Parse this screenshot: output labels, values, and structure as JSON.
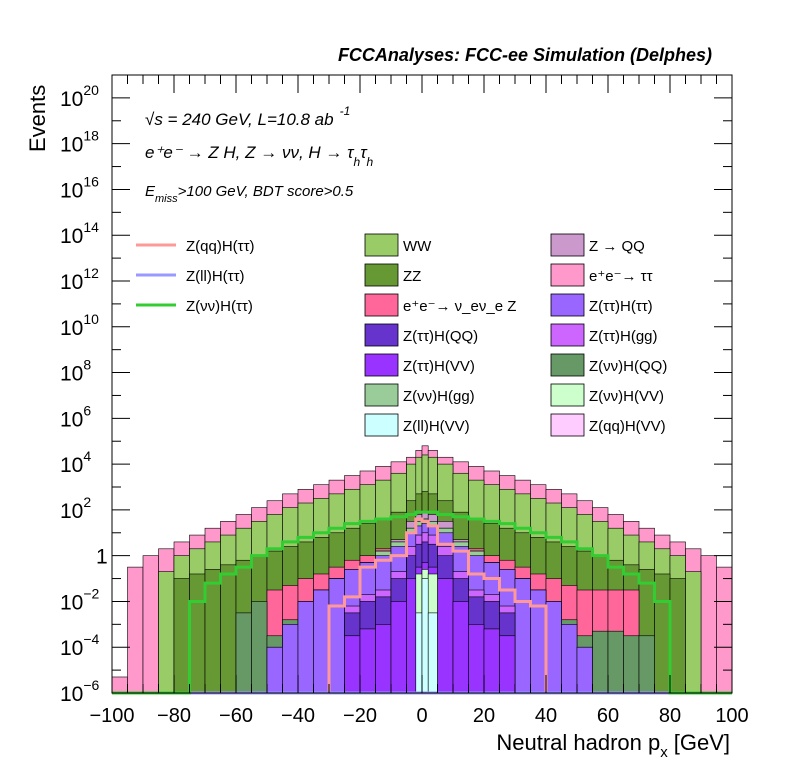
{
  "chart_data": {
    "type": "histogram-stacked",
    "title": "FCCAnalyses: FCC-ee Simulation (Delphes)",
    "xlabel": "Neutral hadron p",
    "xlabel_sub": "x",
    "xlabel_unit": "[GeV]",
    "ylabel": "Events",
    "xlim": [
      -100,
      100
    ],
    "ylim_log10": [
      -6,
      21
    ],
    "yscale": "log",
    "x_ticks": [
      -100,
      -80,
      -60,
      -40,
      -20,
      0,
      20,
      40,
      60,
      80,
      100
    ],
    "x_tick_labels": [
      "−100",
      "−80",
      "−60",
      "−40",
      "−20",
      "0",
      "20",
      "40",
      "60",
      "80",
      "100"
    ],
    "y_ticks": [
      {
        "exp": 20,
        "base": "10",
        "sup": "20"
      },
      {
        "exp": 18,
        "base": "10",
        "sup": "18"
      },
      {
        "exp": 16,
        "base": "10",
        "sup": "16"
      },
      {
        "exp": 14,
        "base": "10",
        "sup": "14"
      },
      {
        "exp": 12,
        "base": "10",
        "sup": "12"
      },
      {
        "exp": 10,
        "base": "10",
        "sup": "10"
      },
      {
        "exp": 8,
        "base": "10",
        "sup": "8"
      },
      {
        "exp": 6,
        "base": "10",
        "sup": "6"
      },
      {
        "exp": 4,
        "base": "10",
        "sup": "4"
      },
      {
        "exp": 2,
        "base": "10",
        "sup": "2"
      },
      {
        "exp": 0,
        "base": "1",
        "sup": ""
      },
      {
        "exp": -2,
        "base": "10",
        "sup": "−2"
      },
      {
        "exp": -4,
        "base": "10",
        "sup": "−4"
      },
      {
        "exp": -6,
        "base": "10",
        "sup": "−6"
      }
    ],
    "annotations": {
      "energy": "√s = 240 GeV, L=10.8 ab",
      "energy_sup": "-1",
      "process": "e⁺e⁻ → Z H, Z → νν, H → τ",
      "process_sub": "h",
      "cuts": "E",
      "cuts_sub": "miss",
      "cuts_rest": ">100 GeV, BDT score>0.5"
    },
    "bin_edges": [
      -100,
      -95,
      -90,
      -85,
      -80,
      -75,
      -70,
      -65,
      -60,
      -55,
      -50,
      -45,
      -40,
      -35,
      -30,
      -25,
      -20,
      -15,
      -10,
      -5,
      -2,
      0,
      2,
      5,
      10,
      15,
      20,
      25,
      30,
      35,
      40,
      45,
      50,
      55,
      60,
      65,
      70,
      75,
      80,
      85,
      90,
      95,
      100
    ],
    "stacked_series": [
      {
        "name": "Z(qq)H(VV)",
        "color": "#ffccff",
        "values_log10": [
          -6,
          -6,
          -6,
          -6,
          -6,
          -6,
          -6,
          -6,
          -6,
          -6,
          -6,
          -6,
          -6,
          -6,
          -6,
          -6,
          -6,
          -6,
          -6,
          -6,
          -6,
          -6,
          -6,
          -6,
          -6,
          -6,
          -6,
          -6,
          -6,
          -6,
          -6,
          -6,
          -6,
          -6,
          -6,
          -6,
          -6,
          -6,
          -6,
          -6,
          -6,
          -6
        ]
      },
      {
        "name": "Z(ll)H(VV)",
        "color": "#ccffff",
        "values_log10": [
          -6,
          -6,
          -6,
          -6,
          -6,
          -6,
          -6,
          -6,
          -6,
          -6,
          -6,
          -6,
          -6,
          -6,
          -6,
          -6,
          -6,
          -6,
          -6,
          -6,
          -2.5,
          -1.0,
          -2.5,
          -6,
          -6,
          -6,
          -6,
          -6,
          -6,
          -6,
          -6,
          -6,
          -6,
          -6,
          -6,
          -6,
          -6,
          -6,
          -6,
          -6,
          -6,
          -6
        ]
      },
      {
        "name": "Z(νν)H(VV)",
        "color": "#ccffcc",
        "values_log10": [
          -6,
          -6,
          -6,
          -6,
          -6,
          -6,
          -6,
          -6,
          -6,
          -6,
          -6,
          -6,
          -6,
          -6,
          -6,
          -6,
          -6,
          -6,
          -6,
          -6,
          -0.8,
          -0.6,
          -0.8,
          -6,
          -6,
          -6,
          -6,
          -6,
          -6,
          -6,
          -6,
          -6,
          -6,
          -6,
          -6,
          -6,
          -6,
          -6,
          -6,
          -6,
          -6,
          -6
        ]
      },
      {
        "name": "Z(ττ)H(VV)",
        "color": "#9933ff",
        "values_log10": [
          -6,
          -6,
          -6,
          -6,
          -6,
          -6,
          -6,
          -6,
          -6,
          -6,
          -6,
          -6,
          -6,
          -6,
          -6,
          -3.5,
          -3.2,
          -3.0,
          -2.0,
          -1.0,
          -0.5,
          -0.3,
          -0.5,
          -1.0,
          -2.0,
          -3.0,
          -3.2,
          -3.5,
          -6,
          -6,
          -6,
          -6,
          -6,
          -6,
          -6,
          -6,
          -6,
          -6,
          -6,
          -6,
          -6,
          -6
        ]
      },
      {
        "name": "Z(ττ)H(QQ)",
        "color": "#6633cc",
        "values_log10": [
          -6,
          -6,
          -6,
          -6,
          -6,
          -6,
          -6,
          -6,
          -6,
          -6,
          -6,
          -6,
          -6,
          -6,
          -6,
          -2.5,
          -2.0,
          -1.8,
          -1.0,
          0.0,
          0.5,
          0.6,
          0.5,
          0.0,
          -1.0,
          -1.8,
          -2.0,
          -2.5,
          -6,
          -6,
          -6,
          -6,
          -6,
          -6,
          -6,
          -6,
          -6,
          -6,
          -6,
          -6,
          -6,
          -6
        ]
      },
      {
        "name": "Z(ττ)H(gg)",
        "color": "#cc66ff",
        "values_log10": [
          -6,
          -6,
          -6,
          -6,
          -6,
          -6,
          -6,
          -6,
          -6,
          -6,
          -6,
          -6,
          -6,
          -6,
          -6,
          -2.2,
          -1.7,
          -1.5,
          -0.7,
          0.4,
          0.9,
          1.0,
          0.9,
          0.4,
          -0.7,
          -1.5,
          -1.7,
          -2.2,
          -6,
          -6,
          -6,
          -6,
          -6,
          -6,
          -6,
          -6,
          -6,
          -6,
          -6,
          -6,
          -6,
          -6
        ]
      },
      {
        "name": "Z(ττ)H(ττ)",
        "color": "#9966ff",
        "values_log10": [
          -6,
          -6,
          -6,
          -6,
          -6,
          -6,
          -6,
          -6,
          -6,
          -6,
          -4.0,
          -3.0,
          -2.0,
          -1.5,
          -1.0,
          -0.6,
          -0.3,
          0.0,
          0.4,
          1.0,
          1.3,
          1.4,
          1.3,
          1.0,
          0.4,
          0.0,
          -0.3,
          -0.6,
          -1.0,
          -1.5,
          -2.0,
          -3.0,
          -4.0,
          -6,
          -6,
          -6,
          -6,
          -6,
          -6,
          -6,
          -6,
          -6
        ]
      },
      {
        "name": "Z(νν)H(gg)",
        "color": "#99cc99",
        "values_log10": [
          -6,
          -6,
          -6,
          -6,
          -6,
          -6,
          -6,
          -6,
          -6,
          -6,
          -4.0,
          -3.0,
          -2.0,
          -1.5,
          -1.0,
          -0.6,
          -0.3,
          0.2,
          0.6,
          1.2,
          1.5,
          1.6,
          1.5,
          1.2,
          0.6,
          0.2,
          -0.3,
          -0.6,
          -1.0,
          -1.5,
          -2.0,
          -3.0,
          -4.0,
          -6,
          -6,
          -6,
          -6,
          -6,
          -6,
          -6,
          -6,
          -6
        ]
      },
      {
        "name": "Z(νν)H(QQ)",
        "color": "#669966",
        "values_log10": [
          -6,
          -6,
          -6,
          -6,
          -6,
          -6,
          -6,
          -6,
          -2.5,
          -2.0,
          -3.5,
          -2.8,
          -2.0,
          -1.5,
          -1.0,
          -0.6,
          -0.3,
          0.2,
          0.6,
          1.2,
          1.5,
          1.6,
          1.5,
          1.2,
          0.6,
          0.2,
          -0.3,
          -0.6,
          -1.0,
          -1.5,
          -2.0,
          -2.8,
          -3.5,
          -3.3,
          -3.3,
          -3.5,
          -3.5,
          -6,
          -6,
          -6,
          -6,
          -6
        ]
      },
      {
        "name": "Z → QQ",
        "color": "#cc99cc",
        "values_log10": [
          -6,
          -6,
          -6,
          -6,
          -6,
          -6,
          -6,
          -6,
          -6,
          -6,
          -4.0,
          -3.0,
          -2.0,
          -1.5,
          -1.0,
          -0.6,
          -0.3,
          0.2,
          0.7,
          1.5,
          1.8,
          1.9,
          1.8,
          1.5,
          0.7,
          0.2,
          -0.3,
          -0.6,
          -1.0,
          -1.5,
          -2.0,
          -3.0,
          -4.0,
          -6,
          -6,
          -6,
          -6,
          -6,
          -6,
          -6,
          -6,
          -6
        ]
      },
      {
        "name": "e⁺e⁻→ ν_eν_e Z",
        "color": "#ff6699",
        "values_log10": [
          -6,
          -6,
          -6,
          -6,
          -6,
          -6,
          -6,
          -6,
          -6,
          -6,
          -1.5,
          -1.3,
          -1.0,
          -0.8,
          -0.5,
          -0.2,
          0.0,
          0.3,
          0.6,
          1.2,
          1.6,
          1.8,
          1.6,
          1.2,
          0.6,
          0.3,
          0.0,
          -0.2,
          -0.5,
          -0.8,
          -1.0,
          -1.3,
          -1.5,
          -1.5,
          -1.5,
          -1.5,
          -6,
          -6,
          -6,
          -6,
          -6,
          -6
        ]
      },
      {
        "name": "ZZ",
        "color": "#669933",
        "values_log10": [
          -6,
          -6,
          -6,
          -6,
          -1.0,
          -0.8,
          -0.6,
          -0.4,
          -0.2,
          0.0,
          0.2,
          0.4,
          0.6,
          0.8,
          1.0,
          1.2,
          1.4,
          1.6,
          1.9,
          2.4,
          2.7,
          2.8,
          2.7,
          2.4,
          1.9,
          1.6,
          1.4,
          1.2,
          1.0,
          0.8,
          0.6,
          0.4,
          0.2,
          0.0,
          -0.2,
          -0.4,
          -0.6,
          -0.8,
          -1.0,
          -6,
          -6,
          -6
        ]
      },
      {
        "name": "WW",
        "color": "#99cc66",
        "values_log10": [
          -6,
          -6,
          -6,
          -0.7,
          0.0,
          0.3,
          0.6,
          0.9,
          1.2,
          1.5,
          1.8,
          2.1,
          2.3,
          2.5,
          2.7,
          2.9,
          3.1,
          3.3,
          3.6,
          4.0,
          4.3,
          4.4,
          4.3,
          4.0,
          3.6,
          3.3,
          3.1,
          2.9,
          2.7,
          2.5,
          2.3,
          2.1,
          1.8,
          1.5,
          1.2,
          0.9,
          0.6,
          0.3,
          0.0,
          -0.7,
          -6,
          -6
        ]
      },
      {
        "name": "e⁺e⁻→ ττ",
        "color": "#ff99cc",
        "values_log10": [
          -5.3,
          -0.5,
          0.0,
          0.3,
          0.6,
          0.9,
          1.2,
          1.5,
          1.8,
          2.1,
          2.4,
          2.7,
          2.9,
          3.1,
          3.3,
          3.5,
          3.7,
          3.9,
          4.1,
          4.3,
          4.6,
          4.8,
          4.6,
          4.3,
          4.1,
          3.9,
          3.7,
          3.5,
          3.3,
          3.1,
          2.9,
          2.7,
          2.4,
          2.1,
          1.8,
          1.5,
          1.2,
          0.9,
          0.6,
          0.3,
          0.0,
          -0.5
        ]
      }
    ],
    "line_series": [
      {
        "name": "Z(qq)H(ττ)",
        "color": "#ff9999",
        "values_log10": [
          -6,
          -6,
          -6,
          -6,
          -6,
          -6,
          -6,
          -6,
          -6,
          -6,
          -6,
          -6,
          -6,
          -6,
          -2.2,
          -1.8,
          -0.5,
          -0.2,
          0.0,
          1.0,
          1.6,
          1.5,
          1.3,
          0.5,
          0.2,
          -0.8,
          -1.0,
          -1.5,
          -2.0,
          -2.2,
          -6,
          -6,
          -6,
          -6,
          -6,
          -6,
          -6,
          -6,
          -6,
          -6,
          -6,
          -6
        ]
      },
      {
        "name": "Z(ll)H(ττ)",
        "color": "#9999ff",
        "values_log10": [
          -6,
          -6,
          -6,
          -6,
          -6,
          -6,
          -6,
          -6,
          -6,
          -6,
          -6,
          -6,
          -6,
          -6,
          -6,
          -6,
          -6,
          -6,
          -6,
          -6,
          -6,
          -6,
          -6,
          -6,
          -6,
          -6,
          -6,
          -6,
          -6,
          -6,
          -6,
          -6,
          -6,
          -6,
          -6,
          -6,
          -6,
          -6,
          -6,
          -6,
          -6,
          -6
        ]
      },
      {
        "name": "Z(νν)H(ττ)",
        "color": "#33cc33",
        "values_log10": [
          -6,
          -6,
          -6,
          -6,
          -6,
          -2.0,
          -1.2,
          -0.8,
          -0.5,
          0.0,
          0.3,
          0.6,
          0.8,
          1.0,
          1.2,
          1.4,
          1.5,
          1.6,
          1.7,
          1.8,
          1.9,
          1.9,
          1.9,
          1.8,
          1.7,
          1.6,
          1.5,
          1.4,
          1.2,
          1.0,
          0.8,
          0.6,
          0.3,
          0.0,
          -0.5,
          -0.8,
          -1.2,
          -2.0,
          -6,
          -6,
          -6,
          -6
        ]
      }
    ],
    "legend": {
      "placement": "top",
      "columns": [
        [
          {
            "type": "line",
            "name": "Z(qq)H(ττ)",
            "color": "#ff9999"
          },
          {
            "type": "line",
            "name": "Z(ll)H(ττ)",
            "color": "#9999ff"
          },
          {
            "type": "line",
            "name": "Z(νν)H(ττ)",
            "color": "#33cc33"
          }
        ],
        [
          {
            "type": "box",
            "name": "WW",
            "color": "#99cc66"
          },
          {
            "type": "box",
            "name": "ZZ",
            "color": "#669933"
          },
          {
            "type": "box",
            "name": "e⁺e⁻→ ν_eν_e Z",
            "color": "#ff6699"
          },
          {
            "type": "box",
            "name": "Z(ττ)H(QQ)",
            "color": "#6633cc"
          },
          {
            "type": "box",
            "name": "Z(ττ)H(VV)",
            "color": "#9933ff"
          },
          {
            "type": "box",
            "name": "Z(νν)H(gg)",
            "color": "#99cc99"
          },
          {
            "type": "box",
            "name": "Z(ll)H(VV)",
            "color": "#ccffff"
          }
        ],
        [
          {
            "type": "box",
            "name": "Z → QQ",
            "color": "#cc99cc"
          },
          {
            "type": "box",
            "name": "e⁺e⁻→ ττ",
            "color": "#ff99cc"
          },
          {
            "type": "box",
            "name": "Z(ττ)H(ττ)",
            "color": "#9966ff"
          },
          {
            "type": "box",
            "name": "Z(ττ)H(gg)",
            "color": "#cc66ff"
          },
          {
            "type": "box",
            "name": "Z(νν)H(QQ)",
            "color": "#669966"
          },
          {
            "type": "box",
            "name": "Z(νν)H(VV)",
            "color": "#ccffcc"
          },
          {
            "type": "box",
            "name": "Z(qq)H(VV)",
            "color": "#ffccff"
          }
        ]
      ]
    }
  }
}
